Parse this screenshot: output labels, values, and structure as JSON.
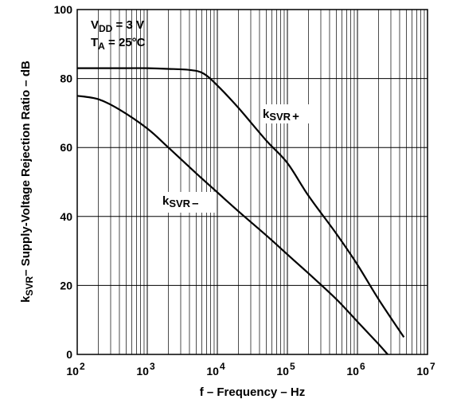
{
  "chart_data": {
    "type": "line",
    "xscale": "log",
    "xlim": [
      100,
      10000000
    ],
    "ylim": [
      0,
      100
    ],
    "grid": true,
    "xlabel": "f – Frequency – Hz",
    "ylabel": {
      "base": "k",
      "sub": "SVR",
      "rest": "– Supply-Voltage Rejection Ratio – dB"
    },
    "x_ticks": [
      {
        "base": "10",
        "exp": "2",
        "value": 100
      },
      {
        "base": "10",
        "exp": "3",
        "value": 1000
      },
      {
        "base": "10",
        "exp": "4",
        "value": 10000
      },
      {
        "base": "10",
        "exp": "5",
        "value": 100000
      },
      {
        "base": "10",
        "exp": "6",
        "value": 1000000
      },
      {
        "base": "10",
        "exp": "7",
        "value": 10000000
      }
    ],
    "y_ticks": [
      "0",
      "20",
      "40",
      "60",
      "80",
      "100"
    ],
    "conditions": [
      {
        "base": "V",
        "sub": "DD",
        "rest": " = 3 V"
      },
      {
        "base": "T",
        "sub": "A",
        "rest": " = 25°C"
      }
    ],
    "series": [
      {
        "name": {
          "base": "k",
          "sub": "SVR",
          "suffix": "+"
        },
        "x": [
          100,
          200,
          500,
          1000,
          2000,
          4000,
          6300,
          10000,
          20000,
          50000,
          100000,
          200000,
          500000,
          1000000,
          2000000,
          4600000
        ],
        "y": [
          83,
          83,
          83,
          83,
          82.8,
          82.5,
          81.5,
          78,
          71.5,
          62,
          55.5,
          46,
          35,
          26,
          16,
          5
        ]
      },
      {
        "name": {
          "base": "k",
          "sub": "SVR",
          "suffix": "–"
        },
        "x": [
          100,
          200,
          400,
          1000,
          2000,
          5000,
          10000,
          20000,
          50000,
          100000,
          200000,
          500000,
          1000000,
          2000000,
          2700000
        ],
        "y": [
          75,
          74,
          71,
          65.5,
          60,
          52.5,
          47,
          41.5,
          34.5,
          29,
          23.5,
          16,
          9.5,
          3,
          0
        ]
      }
    ]
  }
}
